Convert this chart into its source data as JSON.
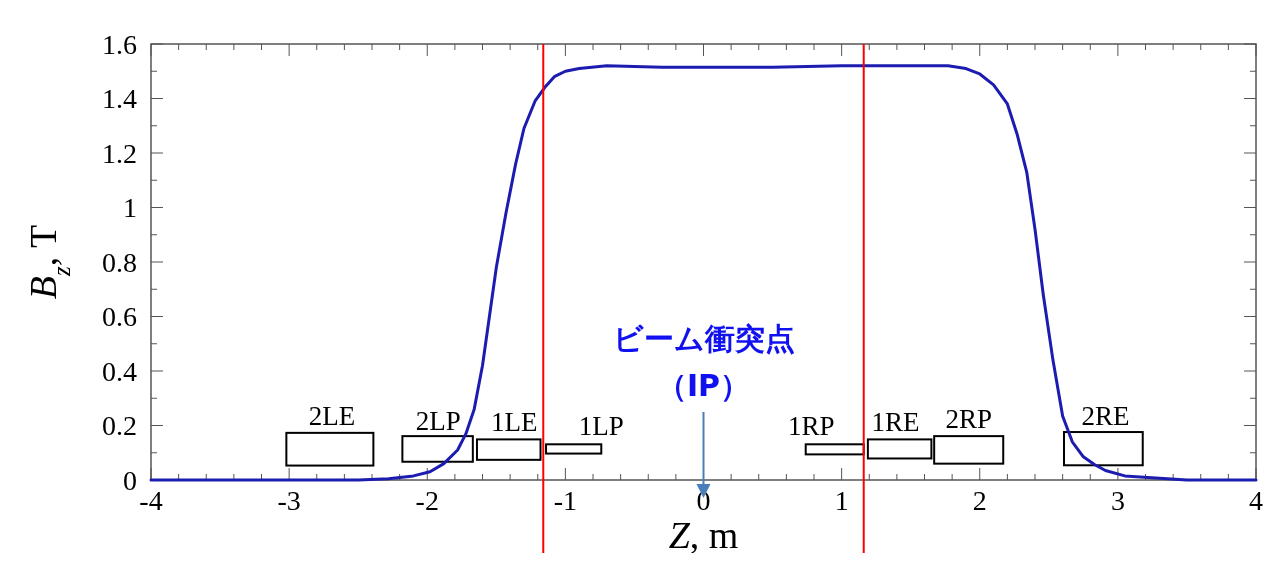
{
  "chart_data": {
    "type": "line",
    "xlabel": "Z, m",
    "ylabel": "B$_{z}$, T",
    "xlim": [
      -4,
      4
    ],
    "xticks": [
      -4,
      -3,
      -2,
      -1,
      0,
      1,
      2,
      3,
      4
    ],
    "ylim": [
      0,
      1.6
    ],
    "yticks": [
      0,
      0.2,
      0.4,
      0.6,
      0.8,
      1,
      1.2,
      1.4,
      1.6
    ],
    "grid": false,
    "marker": "none",
    "line_style": "solid",
    "series": [
      {
        "color": "#1c1cb0",
        "x": [
          -4,
          -3,
          -2.5,
          -2.28,
          -2.1,
          -1.98,
          -1.88,
          -1.78,
          -1.72,
          -1.66,
          -1.6,
          -1.55,
          -1.5,
          -1.43,
          -1.36,
          -1.3,
          -1.22,
          -1.15,
          -1.08,
          -1,
          -0.9,
          -0.7,
          -0.3,
          0,
          0.5,
          1,
          1.5,
          1.77,
          1.9,
          2,
          2.1,
          2.2,
          2.27,
          2.34,
          2.4,
          2.46,
          2.53,
          2.6,
          2.67,
          2.75,
          2.83,
          2.91,
          3.05,
          3.19,
          3.5,
          4
        ],
        "values": [
          0,
          0,
          0,
          0.005,
          0.015,
          0.03,
          0.06,
          0.11,
          0.17,
          0.26,
          0.42,
          0.6,
          0.78,
          0.98,
          1.16,
          1.29,
          1.39,
          1.44,
          1.48,
          1.5,
          1.51,
          1.52,
          1.515,
          1.515,
          1.515,
          1.52,
          1.52,
          1.52,
          1.51,
          1.49,
          1.45,
          1.38,
          1.27,
          1.13,
          0.92,
          0.68,
          0.44,
          0.235,
          0.14,
          0.085,
          0.057,
          0.035,
          0.015,
          0.01,
          0,
          0
        ]
      }
    ],
    "ref_lines": [
      {
        "axis": "x",
        "value": -1.16,
        "color": "#ff0000"
      },
      {
        "axis": "x",
        "value": 1.16,
        "color": "#ff0000"
      }
    ],
    "annotations": [
      "2LE",
      "2LP",
      "1LE",
      "1LP",
      "1RP",
      "1RE",
      "2RP",
      "2RE",
      "ビーム衝突点",
      "（IP）"
    ]
  }
}
